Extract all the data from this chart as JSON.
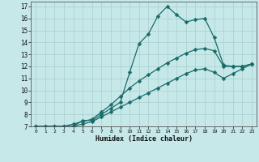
{
  "title": "",
  "xlabel": "Humidex (Indice chaleur)",
  "xlim": [
    -0.5,
    23.5
  ],
  "ylim": [
    7,
    17.4
  ],
  "xticks": [
    0,
    1,
    2,
    3,
    4,
    5,
    6,
    7,
    8,
    9,
    10,
    11,
    12,
    13,
    14,
    15,
    16,
    17,
    18,
    19,
    20,
    21,
    22,
    23
  ],
  "yticks": [
    7,
    8,
    9,
    10,
    11,
    12,
    13,
    14,
    15,
    16,
    17
  ],
  "bg_color": "#c6e8e8",
  "grid_color": "#a8cece",
  "line_color": "#1a6b6b",
  "line1_x": [
    0,
    1,
    2,
    3,
    4,
    5,
    6,
    7,
    8,
    9,
    10,
    11,
    12,
    13,
    14,
    15,
    16,
    17,
    18,
    19,
    20,
    21,
    22,
    23
  ],
  "line1_y": [
    7.0,
    6.95,
    7.0,
    7.0,
    7.0,
    7.5,
    7.5,
    8.0,
    8.5,
    9.0,
    11.5,
    13.9,
    14.7,
    16.2,
    17.0,
    16.3,
    15.7,
    15.9,
    16.0,
    14.4,
    12.1,
    12.0,
    12.0,
    12.2
  ],
  "line2_x": [
    0,
    1,
    2,
    3,
    4,
    5,
    6,
    7,
    8,
    9,
    10,
    11,
    12,
    13,
    14,
    15,
    16,
    17,
    18,
    19,
    20,
    21,
    22,
    23
  ],
  "line2_y": [
    7.0,
    7.0,
    7.0,
    7.0,
    7.2,
    7.4,
    7.6,
    8.2,
    8.8,
    9.5,
    10.2,
    10.8,
    11.3,
    11.8,
    12.3,
    12.7,
    13.1,
    13.4,
    13.5,
    13.3,
    12.0,
    12.0,
    12.0,
    12.2
  ],
  "line3_x": [
    0,
    1,
    2,
    3,
    4,
    5,
    6,
    7,
    8,
    9,
    10,
    11,
    12,
    13,
    14,
    15,
    16,
    17,
    18,
    19,
    20,
    21,
    22,
    23
  ],
  "line3_y": [
    7.0,
    7.0,
    7.0,
    7.0,
    7.0,
    7.2,
    7.4,
    7.8,
    8.2,
    8.6,
    9.0,
    9.4,
    9.8,
    10.2,
    10.6,
    11.0,
    11.4,
    11.7,
    11.8,
    11.5,
    11.0,
    11.4,
    11.8,
    12.2
  ]
}
